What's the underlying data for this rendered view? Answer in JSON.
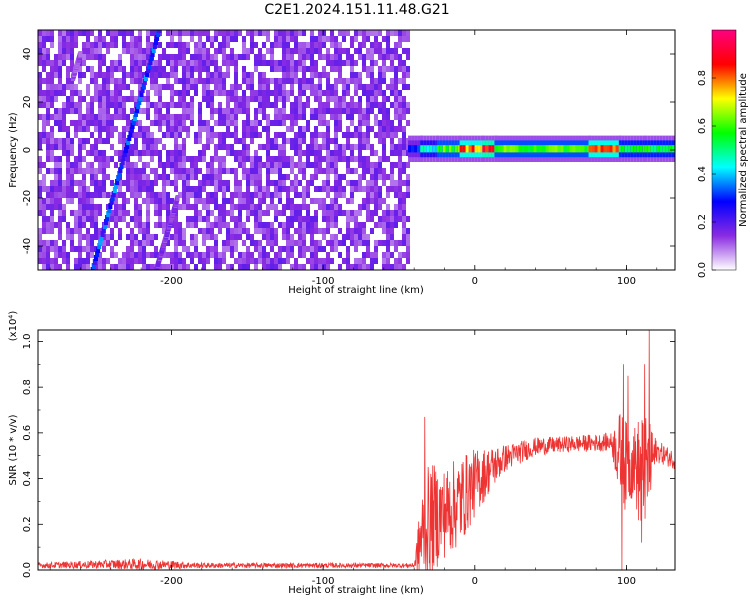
{
  "chart_data": [
    {
      "type": "heatmap",
      "title": "C2E1.2024.151.11.48.G21",
      "xlabel": "Height of straight line (km)",
      "ylabel": "Frequency (Hz)",
      "xlim": [
        -288,
        132
      ],
      "ylim": [
        -50,
        50
      ],
      "xticks": [
        "-200",
        "-100",
        "0",
        "100"
      ],
      "yticks": [
        "-40",
        "-20",
        "0",
        "20",
        "40"
      ],
      "colorbar": {
        "label": "Normalized spectral amplitude",
        "ticks": [
          "0.0",
          "0.2",
          "0.4",
          "0.6",
          "0.8"
        ],
        "range": [
          0,
          1
        ],
        "colors": [
          "#ffffff",
          "#8a2be2",
          "#0000ff",
          "#00ffff",
          "#00ff00",
          "#ffff00",
          "#ff0000",
          "#ff0080"
        ]
      },
      "noise_region": {
        "x": [
          -288,
          -44
        ],
        "level": 0.15
      },
      "lines": [
        {
          "x": [
            -252,
            -208
          ],
          "y": [
            -50,
            50
          ],
          "level": 0.3
        },
        {
          "x": [
            -210,
            -196
          ],
          "y": [
            -50,
            -20
          ],
          "level": 0.15
        },
        {
          "x": [
            -265,
            -260
          ],
          "y": [
            30,
            40
          ],
          "level": 0.12
        }
      ],
      "band": {
        "y_center": 0.5,
        "half_width": 2.5,
        "segments": [
          {
            "x": [
              -44,
              -36
            ],
            "level": 0.3
          },
          {
            "x": [
              -36,
              -25
            ],
            "level": 0.45
          },
          {
            "x": [
              -25,
              -10
            ],
            "level": 0.6
          },
          {
            "x": [
              -10,
              5
            ],
            "level": 0.8
          },
          {
            "x": [
              5,
              13
            ],
            "level": 0.85
          },
          {
            "x": [
              13,
              75
            ],
            "level": 0.6
          },
          {
            "x": [
              75,
              95
            ],
            "level": 0.8
          },
          {
            "x": [
              95,
              112
            ],
            "level": 0.55
          },
          {
            "x": [
              112,
              132
            ],
            "level": 0.55
          }
        ]
      }
    },
    {
      "type": "line",
      "xlabel": "Height of straight line (km)",
      "ylabel": "SNR (10 * v/v)",
      "y_multiplier": "(x10⁴)",
      "xlim": [
        -288,
        132
      ],
      "ylim": [
        0,
        1.05
      ],
      "xticks": [
        "-200",
        "-100",
        "0",
        "100"
      ],
      "yticks": [
        "0.0",
        "0.2",
        "0.4",
        "0.6",
        "0.8",
        "1.0"
      ],
      "series_color": "#ee3333",
      "envelope": [
        {
          "x": -288,
          "base": 0.02,
          "noise": 0.012
        },
        {
          "x": -240,
          "base": 0.025,
          "noise": 0.02
        },
        {
          "x": -220,
          "base": 0.025,
          "noise": 0.025
        },
        {
          "x": -180,
          "base": 0.02,
          "noise": 0.012
        },
        {
          "x": -40,
          "base": 0.02,
          "noise": 0.01
        },
        {
          "x": -35,
          "base": 0.15,
          "noise": 0.2
        },
        {
          "x": -30,
          "base": 0.22,
          "noise": 0.25
        },
        {
          "x": -20,
          "base": 0.25,
          "noise": 0.2
        },
        {
          "x": -10,
          "base": 0.3,
          "noise": 0.2
        },
        {
          "x": 0,
          "base": 0.38,
          "noise": 0.15
        },
        {
          "x": 10,
          "base": 0.44,
          "noise": 0.1
        },
        {
          "x": 20,
          "base": 0.49,
          "noise": 0.06
        },
        {
          "x": 40,
          "base": 0.54,
          "noise": 0.04
        },
        {
          "x": 60,
          "base": 0.55,
          "noise": 0.035
        },
        {
          "x": 90,
          "base": 0.56,
          "noise": 0.04
        },
        {
          "x": 96,
          "base": 0.5,
          "noise": 0.2
        },
        {
          "x": 100,
          "base": 0.45,
          "noise": 0.2
        },
        {
          "x": 105,
          "base": 0.48,
          "noise": 0.15
        },
        {
          "x": 110,
          "base": 0.4,
          "noise": 0.3
        },
        {
          "x": 115,
          "base": 0.45,
          "noise": 0.2
        },
        {
          "x": 120,
          "base": 0.52,
          "noise": 0.05
        },
        {
          "x": 132,
          "base": 0.48,
          "noise": 0.04
        }
      ],
      "spikes": [
        {
          "x": -33,
          "y": 0.67
        },
        {
          "x": -30,
          "y": 0.03
        },
        {
          "x": 97,
          "y": 0.0
        },
        {
          "x": 98,
          "y": 0.9
        },
        {
          "x": 101,
          "y": 0.85
        },
        {
          "x": 110,
          "y": 0.12
        },
        {
          "x": 112,
          "y": 0.9
        },
        {
          "x": 115,
          "y": 1.05
        },
        {
          "x": 117,
          "y": 0.6
        }
      ]
    }
  ]
}
